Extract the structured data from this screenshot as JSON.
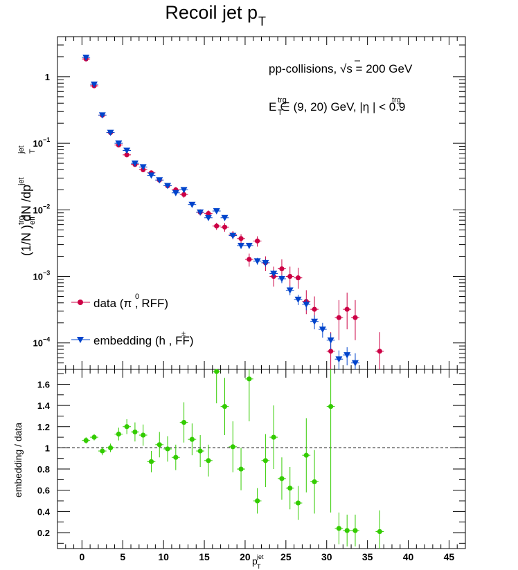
{
  "chart_data": {
    "type": "scatter",
    "title": "Recoil jet p",
    "title_sub": "T",
    "annotation_line1": "pp-collisions, √s = 200 GeV",
    "annotation_line2": "E  ∈ (9, 20) GeV, |η  | < 0.9",
    "xlabel": "p",
    "xlim": [
      -3,
      47
    ],
    "x_ticks": [
      "0",
      "5",
      "10",
      "15",
      "20",
      "25",
      "30",
      "35",
      "40",
      "45"
    ],
    "top_panel": {
      "ylabel": "(1/N  ) dN  /dp",
      "yscale": "log",
      "ylim": [
        4e-05,
        4
      ],
      "y_ticks": [
        "1",
        "10",
        "10",
        "10",
        "10"
      ],
      "y_tick_exponents": [
        "",
        "−1",
        "−2",
        "−3",
        "−4"
      ],
      "legend_placement": "bottom-left",
      "series": [
        {
          "name": "data (π , RFF)",
          "color": "#cc0044",
          "marker": "circle",
          "x": [
            0.5,
            1.5,
            2.5,
            3.5,
            4.5,
            5.5,
            6.5,
            7.5,
            8.5,
            9.5,
            10.5,
            11.5,
            12.5,
            14.5,
            15.5,
            16.5,
            17.5,
            18.5,
            19.5,
            20.5,
            21.5,
            22.5,
            23.5,
            24.5,
            25.5,
            26.5,
            27.5,
            28.5,
            30.5,
            31.5,
            32.5,
            33.5,
            36.5
          ],
          "y": [
            1.85,
            0.73,
            0.265,
            0.145,
            0.094,
            0.067,
            0.048,
            0.04,
            0.036,
            0.028,
            0.023,
            0.02,
            0.017,
            0.0092,
            0.0088,
            0.0057,
            0.0055,
            0.0042,
            0.0037,
            0.0018,
            0.0034,
            0.0016,
            0.001,
            0.0013,
            0.001,
            0.00095,
            0.00042,
            0.00032,
            7.5e-05,
            0.00024,
            0.00032,
            0.00024,
            7.5e-05
          ],
          "err_lo": [
            0.05,
            0.02,
            0.01,
            0.005,
            0.004,
            0.003,
            0.003,
            0.003,
            0.003,
            0.002,
            0.002,
            0.002,
            0.0018,
            0.001,
            0.001,
            0.0007,
            0.0008,
            0.0006,
            0.0006,
            0.0004,
            0.0006,
            0.0004,
            0.0003,
            0.0004,
            0.0003,
            0.0003,
            0.00015,
            0.00013,
            5e-05,
            0.00013,
            0.00016,
            0.00013,
            5e-05
          ],
          "err_hi": [
            0.05,
            0.02,
            0.01,
            0.005,
            0.004,
            0.003,
            0.003,
            0.003,
            0.003,
            0.002,
            0.002,
            0.002,
            0.0018,
            0.001,
            0.001,
            0.0007,
            0.0008,
            0.0006,
            0.0006,
            0.0004,
            0.0006,
            0.0004,
            0.0004,
            0.0005,
            0.0004,
            0.0004,
            0.0002,
            0.00018,
            7e-05,
            0.0002,
            0.00025,
            0.0002,
            7e-05
          ]
        },
        {
          "name": "embedding (h , FF)",
          "color": "#0044cc",
          "marker": "triangle-down",
          "x": [
            0.5,
            1.5,
            2.5,
            3.5,
            4.5,
            5.5,
            6.5,
            7.5,
            8.5,
            9.5,
            10.5,
            11.5,
            12.5,
            13.5,
            14.5,
            15.5,
            16.5,
            17.5,
            18.5,
            19.5,
            20.5,
            21.5,
            22.5,
            23.5,
            24.5,
            25.5,
            26.5,
            27.5,
            28.5,
            29.5,
            30.5,
            31.5,
            32.5,
            33.5
          ],
          "y": [
            1.95,
            0.77,
            0.265,
            0.145,
            0.1,
            0.078,
            0.05,
            0.044,
            0.033,
            0.028,
            0.023,
            0.018,
            0.02,
            0.012,
            0.0092,
            0.0076,
            0.0096,
            0.0076,
            0.0041,
            0.0029,
            0.0029,
            0.0017,
            0.0016,
            0.0011,
            0.00092,
            0.00062,
            0.00045,
            0.00038,
            0.00021,
            0.00016,
            0.00011,
            5.7e-05,
            6.6e-05,
            5e-05
          ],
          "err_lo": [
            0.05,
            0.02,
            0.008,
            0.004,
            0.003,
            0.003,
            0.002,
            0.002,
            0.002,
            0.0015,
            0.0015,
            0.0012,
            0.0012,
            0.0008,
            0.0006,
            0.0005,
            0.0006,
            0.0005,
            0.0004,
            0.0003,
            0.0003,
            0.0002,
            0.0002,
            0.00015,
            0.00013,
            0.0001,
            8e-05,
            7e-05,
            5e-05,
            4e-05,
            3e-05,
            2e-05,
            2e-05,
            2e-05
          ],
          "err_hi": [
            0.05,
            0.02,
            0.008,
            0.004,
            0.003,
            0.003,
            0.002,
            0.002,
            0.002,
            0.0015,
            0.0015,
            0.0012,
            0.0012,
            0.0008,
            0.0006,
            0.0005,
            0.0006,
            0.0005,
            0.0004,
            0.0003,
            0.0003,
            0.0002,
            0.0002,
            0.00015,
            0.00013,
            0.0001,
            8e-05,
            7e-05,
            5e-05,
            4e-05,
            3e-05,
            2e-05,
            2e-05,
            2e-05
          ]
        }
      ]
    },
    "bottom_panel": {
      "ylabel": "embedding / data",
      "ylim": [
        0.05,
        1.74
      ],
      "y_ticks": [
        0.2,
        0.4,
        0.6,
        0.8,
        1,
        1.2,
        1.4,
        1.6
      ],
      "reference_line": 1,
      "series": [
        {
          "name": "",
          "color": "#33cc00",
          "marker": "circle",
          "x": [
            0.5,
            1.5,
            2.5,
            3.5,
            4.5,
            5.5,
            6.5,
            7.5,
            8.5,
            9.5,
            10.5,
            11.5,
            12.5,
            13.5,
            14.5,
            15.5,
            16.5,
            17.5,
            18.5,
            19.5,
            20.5,
            21.5,
            22.5,
            23.5,
            24.5,
            25.5,
            26.5,
            27.5,
            28.5,
            30.5,
            31.5,
            32.5,
            33.5,
            36.5
          ],
          "y": [
            1.07,
            1.1,
            0.97,
            1.0,
            1.13,
            1.2,
            1.15,
            1.12,
            0.87,
            1.03,
            0.99,
            0.91,
            1.24,
            1.08,
            0.97,
            0.88,
            1.72,
            1.39,
            1.01,
            0.8,
            1.65,
            0.5,
            0.88,
            1.1,
            0.71,
            0.62,
            0.48,
            0.93,
            0.68,
            1.39,
            0.24,
            0.22,
            0.22,
            0.21
          ],
          "err": [
            0.03,
            0.03,
            0.04,
            0.04,
            0.06,
            0.07,
            0.09,
            0.1,
            0.1,
            0.12,
            0.12,
            0.12,
            0.19,
            0.15,
            0.15,
            0.15,
            0.3,
            0.27,
            0.24,
            0.2,
            0.4,
            0.12,
            0.25,
            0.3,
            0.2,
            0.2,
            0.16,
            0.35,
            0.3,
            1.0,
            0.15,
            0.15,
            0.15,
            0.2
          ]
        }
      ]
    }
  }
}
